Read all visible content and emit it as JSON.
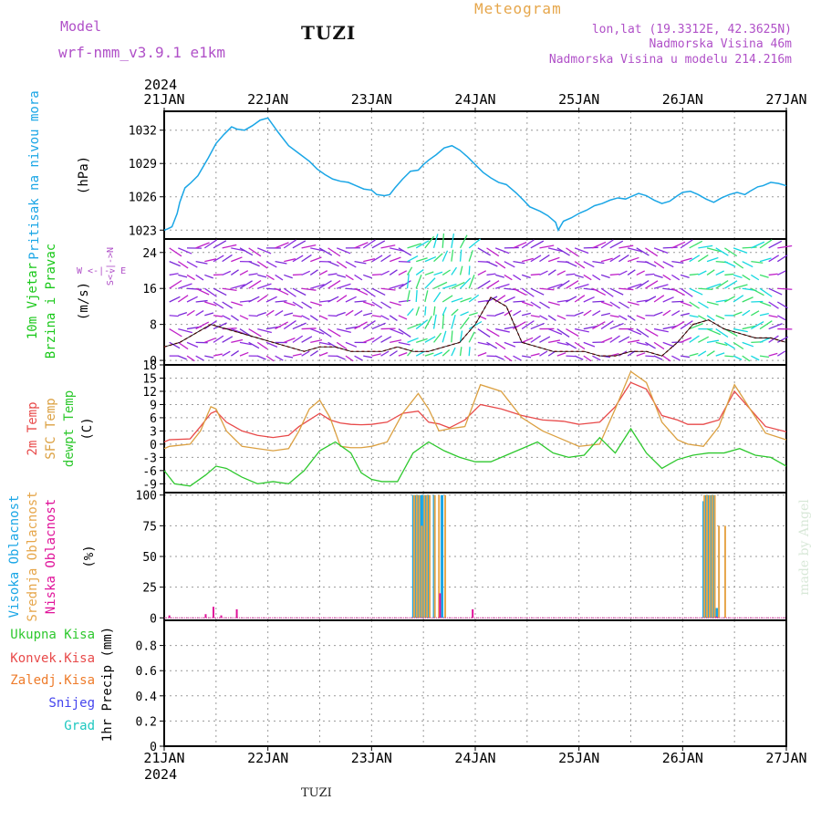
{
  "header": {
    "model_label": "Model",
    "model_name": "wrf-nmm_v3.9.1 e1km",
    "station": "TUZI",
    "title": "Meteogram",
    "location": "lon,lat (19.3312E, 42.3625N)",
    "elevation": "Nadmorska Visina 46m",
    "model_elevation": "Nadmorska Visina u modelu 214.216m"
  },
  "footer": {
    "station": "TUZI",
    "credit": "made by Angel"
  },
  "colors": {
    "pressure": "#1aa6e6",
    "temp2m": "#e84a4a",
    "sfc": "#dba041",
    "dew": "#2ec82e",
    "wind_label": "#19c819",
    "high_cloud": "#1aa6e6",
    "mid_cloud": "#e6a64a",
    "low_cloud": "#e0139a",
    "precip_total": "#2ec82e",
    "precip_conv": "#e84a4a",
    "precip_frz": "#ee7b2a",
    "precip_snow": "#4444ee",
    "precip_hail": "#1ec8c0",
    "dir_label": "#b050c8"
  },
  "chart_data": [
    {
      "type": "line",
      "ylabel": "Pritisak na nivou mora",
      "unit": "(hPa)",
      "x_top_labels": [
        "21JAN",
        "22JAN",
        "23JAN",
        "24JAN",
        "25JAN",
        "26JAN",
        "27JAN"
      ],
      "year": "2024",
      "ylim": [
        1022.2,
        1033.7
      ],
      "yticks": [
        1023,
        1026,
        1029,
        1032
      ],
      "series": [
        {
          "x": [
            0,
            0.06,
            0.15,
            0.25,
            0.3,
            0.4,
            0.5,
            0.65,
            0.85,
            1.0,
            1.15,
            1.3,
            1.4,
            1.55,
            1.7,
            1.85,
            2.0,
            2.2,
            2.4,
            2.6,
            2.8,
            2.95,
            3.1,
            3.25,
            3.4,
            3.55,
            3.7,
            3.85,
            4.0,
            4.1,
            4.25,
            4.35,
            4.45,
            4.6,
            4.75,
            4.9,
            5.0,
            5.1,
            5.25,
            5.4,
            5.55,
            5.7,
            5.85,
            6.0,
            6.15,
            6.3,
            6.45,
            6.6,
            6.8,
            6.95,
            7.05,
            7.25,
            7.4,
            7.55,
            7.6,
            7.7,
            7.85,
            8.0,
            8.15,
            8.3,
            8.45,
            8.6,
            8.75,
            8.9,
            9.0,
            9.15,
            9.3,
            9.45,
            9.6,
            9.75,
            9.9,
            10.0,
            10.15,
            10.3,
            10.45,
            10.6,
            10.75,
            10.9,
            11.05,
            11.2,
            11.3,
            11.45,
            11.55,
            11.7,
            11.85,
            12.0
          ],
          "values": [
            1023.0,
            1023.1,
            1023.3,
            1024.5,
            1025.5,
            1026.8,
            1027.2,
            1027.9,
            1029.5,
            1030.8,
            1031.6,
            1032.3,
            1032.1,
            1032.0,
            1032.4,
            1032.9,
            1033.1,
            1031.8,
            1030.6,
            1029.9,
            1029.2,
            1028.5,
            1028.0,
            1027.6,
            1027.4,
            1027.3,
            1027.0,
            1026.7,
            1026.6,
            1026.2,
            1026.1,
            1026.2,
            1026.8,
            1027.6,
            1028.3,
            1028.4,
            1028.9,
            1029.3,
            1029.8,
            1030.4,
            1030.6,
            1030.2,
            1029.6,
            1028.9,
            1028.2,
            1027.7,
            1027.3,
            1027.1,
            1026.3,
            1025.6,
            1025.1,
            1024.7,
            1024.3,
            1023.7,
            1023.0,
            1023.8,
            1024.1,
            1024.5,
            1024.8,
            1025.2,
            1025.4,
            1025.7,
            1025.9,
            1025.8,
            1026.0,
            1026.3,
            1026.1,
            1025.7,
            1025.4,
            1025.6,
            1026.1,
            1026.4,
            1026.5,
            1026.2,
            1025.8,
            1025.5,
            1025.9,
            1026.2,
            1026.4,
            1026.2,
            1026.5,
            1026.9,
            1027.0,
            1027.3,
            1027.2,
            1027.0
          ]
        }
      ],
      "grid": true
    },
    {
      "type": "scatter",
      "ylabel": "10m Vjetar Brzina i Pravac",
      "unit": "(m/s)",
      "direction_legend": "W <-|-> E",
      "direction_vertical": "S<-|->N",
      "ylim": [
        -1,
        27
      ],
      "yticks": [
        0,
        8,
        16,
        24
      ],
      "series": [
        {
          "x": [
            0,
            0.3,
            0.6,
            0.9,
            1.2,
            1.5,
            1.8,
            2.1,
            2.4,
            2.7,
            3.0,
            3.3,
            3.6,
            3.9,
            4.2,
            4.5,
            4.8,
            5.1,
            5.4,
            5.7,
            6.0,
            6.3,
            6.6,
            6.9,
            7.2,
            7.5,
            7.8,
            8.1,
            8.4,
            8.7,
            9.0,
            9.3,
            9.6,
            9.9,
            10.2,
            10.5,
            10.8,
            11.1,
            11.4,
            11.7,
            12.0
          ],
          "values": [
            3,
            4,
            6,
            8,
            7,
            6,
            5,
            4,
            3,
            2,
            3,
            3,
            2,
            2,
            2,
            3,
            2,
            2,
            3,
            4,
            8,
            14,
            12,
            4,
            3,
            2,
            2,
            2,
            1,
            1,
            2,
            2,
            1,
            4,
            8,
            9,
            7,
            6,
            5,
            5,
            4
          ]
        }
      ],
      "grid": true
    },
    {
      "type": "line",
      "ylabel": "2m Temp, SFC Temp, dewpt Temp",
      "unit": "(C)",
      "ylim": [
        -11,
        18
      ],
      "yticks": [
        -9,
        -6,
        -3,
        0,
        3,
        6,
        9,
        12,
        15,
        18
      ],
      "series": [
        {
          "name": "2m Temp",
          "x": [
            0,
            0.1,
            0.5,
            0.7,
            0.9,
            1.0,
            1.2,
            1.5,
            1.8,
            2.1,
            2.4,
            2.6,
            2.8,
            3.0,
            3.2,
            3.4,
            3.6,
            3.8,
            4.0,
            4.3,
            4.6,
            4.9,
            5.1,
            5.3,
            5.5,
            5.8,
            6.1,
            6.5,
            6.9,
            7.3,
            7.7,
            8.0,
            8.4,
            8.7,
            9.0,
            9.3,
            9.6,
            9.9,
            10.1,
            10.4,
            10.7,
            11.0,
            11.3,
            11.6,
            12.0
          ],
          "values": [
            0.5,
            1,
            1.2,
            4,
            7,
            7.5,
            5,
            3,
            2,
            1.5,
            2,
            4,
            5.5,
            7,
            5.5,
            4.8,
            4.5,
            4.4,
            4.5,
            5,
            7,
            7.5,
            5,
            4.6,
            3.7,
            5.5,
            9,
            8,
            6.5,
            5.5,
            5.2,
            4.5,
            5,
            8.5,
            14,
            12.5,
            6.5,
            5.5,
            4.5,
            4.5,
            5.5,
            12,
            8,
            4,
            2.8
          ]
        },
        {
          "name": "SFC Temp",
          "x": [
            0,
            0.1,
            0.5,
            0.7,
            0.9,
            1.0,
            1.2,
            1.5,
            1.8,
            2.1,
            2.4,
            2.6,
            2.8,
            3.0,
            3.2,
            3.4,
            3.6,
            3.8,
            4.0,
            4.3,
            4.6,
            4.9,
            5.1,
            5.3,
            5.5,
            5.8,
            6.1,
            6.5,
            6.9,
            7.3,
            7.7,
            8.0,
            8.4,
            8.7,
            9.0,
            9.3,
            9.6,
            9.9,
            10.1,
            10.4,
            10.7,
            11.0,
            11.3,
            11.6,
            12.0
          ],
          "values": [
            -1,
            -0.5,
            0,
            3,
            8.5,
            8,
            3,
            -0.5,
            -1,
            -1.5,
            -1,
            3,
            8,
            10,
            6,
            -0.5,
            -0.8,
            -0.8,
            -0.5,
            0.5,
            7,
            11.5,
            8,
            3,
            3.5,
            4,
            13.5,
            12,
            6,
            3,
            1,
            -0.5,
            0,
            8,
            16.5,
            14,
            5,
            1,
            0,
            -0.5,
            4,
            13.5,
            8,
            2.5,
            1
          ]
        },
        {
          "name": "dewpt Temp",
          "x": [
            0,
            0.2,
            0.5,
            0.8,
            1.0,
            1.2,
            1.5,
            1.8,
            2.1,
            2.4,
            2.7,
            3.0,
            3.3,
            3.6,
            3.8,
            4.0,
            4.2,
            4.5,
            4.8,
            5.1,
            5.4,
            5.7,
            6.0,
            6.3,
            6.6,
            6.9,
            7.2,
            7.5,
            7.8,
            8.1,
            8.4,
            8.7,
            9.0,
            9.3,
            9.6,
            9.9,
            10.2,
            10.5,
            10.8,
            11.1,
            11.4,
            11.7,
            12.0
          ],
          "values": [
            -6,
            -9,
            -9.5,
            -7,
            -5,
            -5.5,
            -7.5,
            -9,
            -8.5,
            -9,
            -6,
            -1.5,
            0.5,
            -2,
            -6.5,
            -8,
            -8.5,
            -8.5,
            -2,
            0.5,
            -1.5,
            -3,
            -4,
            -4,
            -2.5,
            -1,
            0.5,
            -2,
            -3,
            -2.5,
            1.5,
            -2,
            3.5,
            -2,
            -5.5,
            -3.5,
            -2.5,
            -2,
            -2,
            -1,
            -2.5,
            -3,
            -5
          ]
        }
      ],
      "grid": true
    },
    {
      "type": "bar",
      "ylabel": "Visoka Oblacnost, Srednja Oblacnost, Niska Oblacnost",
      "unit": "(%)",
      "ylim": [
        -2,
        102
      ],
      "yticks": [
        0,
        25,
        50,
        75,
        100
      ],
      "series": [
        {
          "name": "Visoka Oblacnost",
          "x": [
            4.8,
            4.85,
            4.9,
            4.95,
            5.0,
            5.05,
            5.1,
            5.2,
            5.35,
            10.4,
            10.45,
            10.5,
            10.55,
            10.6,
            10.65
          ],
          "values": [
            100,
            100,
            100,
            100,
            100,
            100,
            100,
            100,
            100,
            95,
            100,
            100,
            100,
            100,
            8
          ]
        },
        {
          "name": "Srednja Oblacnost",
          "x": [
            4.82,
            4.87,
            4.92,
            4.97,
            5.02,
            5.07,
            5.12,
            5.22,
            5.3,
            5.42,
            10.42,
            10.47,
            10.52,
            10.57,
            10.62,
            10.7,
            10.82
          ],
          "values": [
            100,
            100,
            100,
            75,
            100,
            100,
            100,
            100,
            100,
            100,
            100,
            100,
            100,
            100,
            100,
            75,
            75
          ]
        },
        {
          "name": "Niska Oblacnost",
          "x": [
            0.1,
            0.8,
            0.95,
            1.1,
            1.4,
            5.32,
            5.95,
            10.65
          ],
          "values": [
            2,
            3,
            9,
            2,
            7,
            20,
            7,
            1
          ]
        }
      ],
      "grid": true
    },
    {
      "type": "bar",
      "ylabel": "1hr Precip",
      "unit": "(mm)",
      "ylim": [
        0,
        1
      ],
      "yticks": [
        0,
        0.2,
        0.4,
        0.6,
        0.8
      ],
      "series": [
        {
          "name": "Ukupna Kisa",
          "x": [],
          "values": []
        },
        {
          "name": "Konvek.Kisa",
          "x": [],
          "values": []
        },
        {
          "name": "Zaledj.Kisa",
          "x": [],
          "values": []
        },
        {
          "name": "Snijeg",
          "x": [],
          "values": []
        },
        {
          "name": "Grad",
          "x": [],
          "values": []
        }
      ],
      "x_bottom_labels": [
        "21JAN",
        "22JAN",
        "23JAN",
        "24JAN",
        "25JAN",
        "26JAN",
        "27JAN"
      ],
      "year": "2024",
      "grid": true
    }
  ]
}
